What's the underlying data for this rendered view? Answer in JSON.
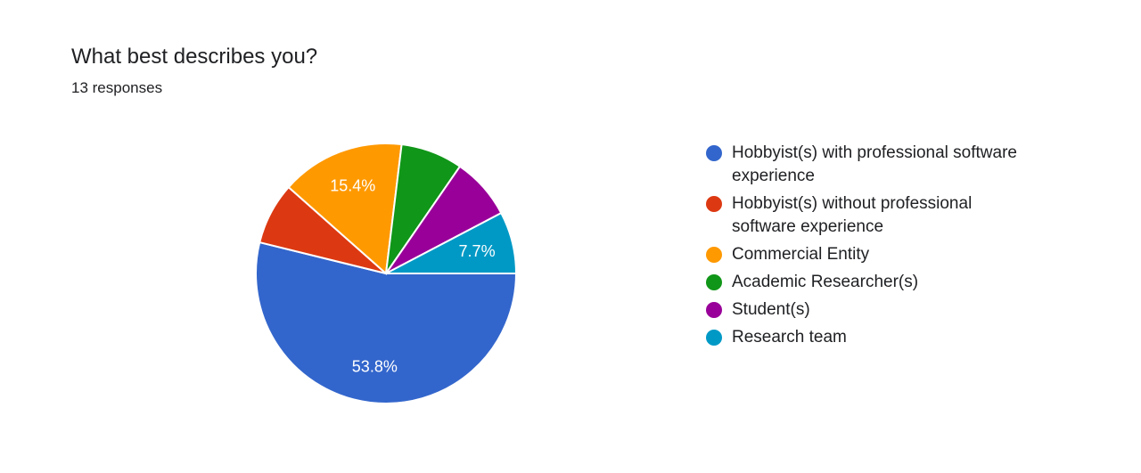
{
  "header": {
    "title": "What best describes you?",
    "subtitle": "13 responses"
  },
  "chart_data": {
    "type": "pie",
    "title": "What best describes you?",
    "subtitle": "13 responses",
    "legend_position": "right",
    "series": [
      {
        "name": "Hobbyist(s) with professional software experience",
        "value": 7,
        "percent_label": "53.8%",
        "color": "#3366cc"
      },
      {
        "name": "Hobbyist(s) without professional software experience",
        "value": 1,
        "percent_label": "",
        "color": "#dc3912"
      },
      {
        "name": "Commercial Entity",
        "value": 2,
        "percent_label": "15.4%",
        "color": "#ff9900"
      },
      {
        "name": "Academic Researcher(s)",
        "value": 1,
        "percent_label": "",
        "color": "#109618"
      },
      {
        "name": "Student(s)",
        "value": 1,
        "percent_label": "",
        "color": "#990099"
      },
      {
        "name": "Research team",
        "value": 1,
        "percent_label": "7.7%",
        "color": "#0099c6"
      }
    ]
  }
}
